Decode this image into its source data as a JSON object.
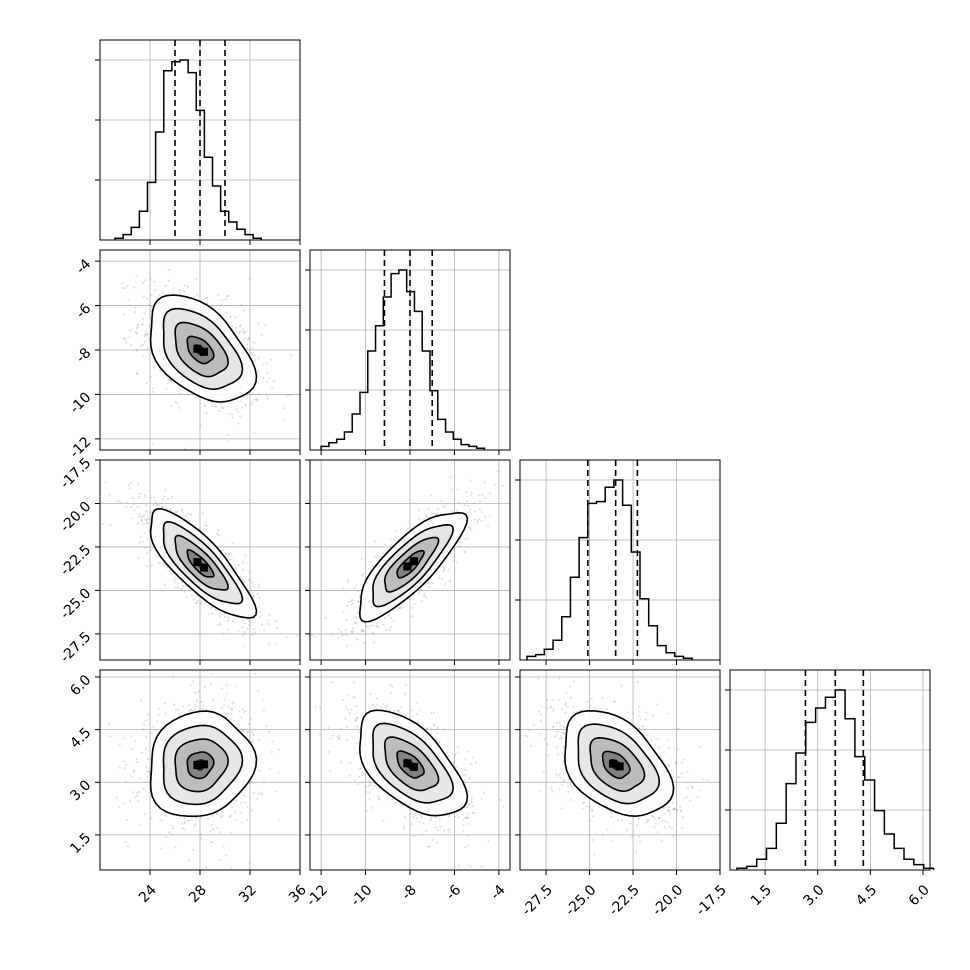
{
  "chart_data": {
    "type": "corner",
    "title": "",
    "grid": true,
    "parameters": [
      {
        "range": [
          20,
          36
        ],
        "ticks": [
          "24",
          "28",
          "32",
          "36"
        ],
        "tick_values": [
          24,
          28,
          32,
          36
        ],
        "median": 28.0,
        "q16": 26.0,
        "q84": 30.0
      },
      {
        "range": [
          -12.5,
          -3.5
        ],
        "ticks": [
          "-12",
          "-10",
          "-8",
          "-6",
          "-4"
        ],
        "tick_values": [
          -12,
          -10,
          -8,
          -6,
          -4
        ],
        "median": -8.0,
        "q16": -9.15,
        "q84": -7.0
      },
      {
        "range": [
          -29,
          -17.5
        ],
        "ticks": [
          "-27.5",
          "-25.0",
          "-22.5",
          "-20.0",
          "-17.5"
        ],
        "tick_values": [
          -27.5,
          -25.0,
          -22.5,
          -20.0,
          -17.5
        ],
        "median": -23.5,
        "q16": -25.1,
        "q84": -22.25
      },
      {
        "range": [
          0.5,
          6.2
        ],
        "ticks": [
          "1.5",
          "3.0",
          "4.5",
          "6.0"
        ],
        "tick_values": [
          1.5,
          3.0,
          4.5,
          6.0
        ],
        "median": 3.5,
        "q16": 2.65,
        "q84": 4.3
      }
    ],
    "histograms": [
      {
        "param": 0,
        "bin_start": 21.2,
        "bin_width": 0.65,
        "counts": [
          0.01,
          0.03,
          0.07,
          0.16,
          0.32,
          0.6,
          0.94,
          0.99,
          1.0,
          0.93,
          0.72,
          0.46,
          0.3,
          0.16,
          0.1,
          0.06,
          0.03,
          0.01
        ]
      },
      {
        "param": 1,
        "bin_start": -12.0,
        "bin_width": 0.35,
        "counts": [
          0.02,
          0.04,
          0.06,
          0.1,
          0.2,
          0.32,
          0.55,
          0.69,
          0.85,
          0.98,
          1.0,
          0.88,
          0.77,
          0.55,
          0.33,
          0.17,
          0.1,
          0.06,
          0.03,
          0.02,
          0.01
        ]
      },
      {
        "param": 2,
        "bin_start": -28.6,
        "bin_width": 0.5,
        "counts": [
          0.02,
          0.03,
          0.06,
          0.11,
          0.24,
          0.46,
          0.68,
          0.87,
          0.88,
          0.96,
          1.0,
          0.86,
          0.6,
          0.34,
          0.19,
          0.08,
          0.04,
          0.02,
          0.01
        ]
      },
      {
        "param": 3,
        "bin_start": 0.7,
        "bin_width": 0.28,
        "counts": [
          0.01,
          0.02,
          0.06,
          0.12,
          0.26,
          0.48,
          0.65,
          0.82,
          0.9,
          0.96,
          1.0,
          0.84,
          0.63,
          0.5,
          0.33,
          0.2,
          0.12,
          0.06,
          0.03,
          0.01
        ]
      }
    ],
    "pairs": [
      {
        "x": 0,
        "y": 1,
        "mean": [
          28.0,
          -8.0
        ],
        "sd": [
          2.1,
          1.2
        ],
        "rho": -0.45
      },
      {
        "x": 0,
        "y": 2,
        "mean": [
          28.0,
          -23.5
        ],
        "sd": [
          2.1,
          1.55
        ],
        "rho": -0.8
      },
      {
        "x": 1,
        "y": 2,
        "mean": [
          -8.0,
          -23.5
        ],
        "sd": [
          1.2,
          1.55
        ],
        "rho": 0.8
      },
      {
        "x": 0,
        "y": 3,
        "mean": [
          28.0,
          3.5
        ],
        "sd": [
          2.1,
          0.75
        ],
        "rho": 0.1
      },
      {
        "x": 1,
        "y": 3,
        "mean": [
          -8.0,
          3.5
        ],
        "sd": [
          1.2,
          0.75
        ],
        "rho": -0.55
      },
      {
        "x": 2,
        "y": 3,
        "mean": [
          -23.5,
          3.5
        ],
        "sd": [
          1.55,
          0.75
        ],
        "rho": -0.4
      }
    ],
    "contour_levels_sigma": [
      0.5,
      1.0,
      1.5,
      2.0
    ],
    "colors": {
      "line": "#000000",
      "points": "#808080",
      "grid": "#b0b0b0",
      "density": "#000000"
    }
  }
}
